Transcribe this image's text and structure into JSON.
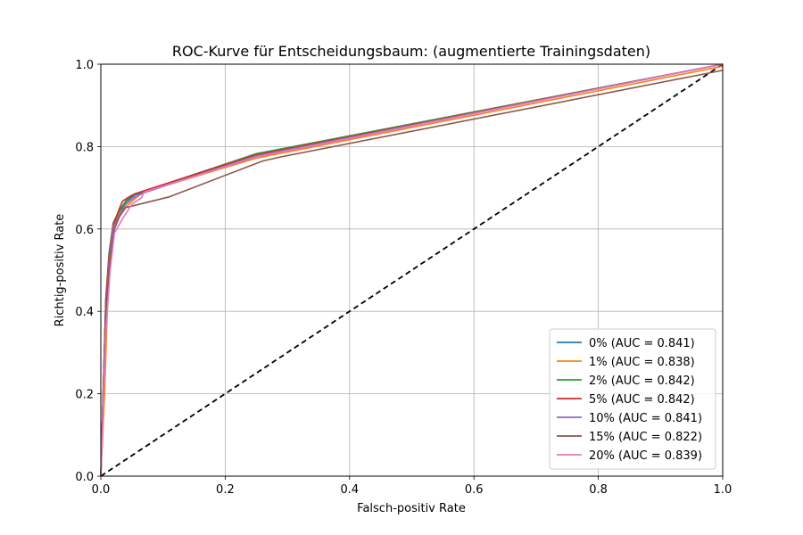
{
  "chart_data": {
    "type": "line",
    "title": "ROC-Kurve für Entscheidungsbaum: (augmentierte Trainingsdaten)",
    "xlabel": "Falsch-positiv Rate",
    "ylabel": "Richtig-positiv Rate",
    "xlim": [
      0,
      1
    ],
    "ylim": [
      0,
      1
    ],
    "grid": true,
    "legend_position": "lower-right",
    "xticks": [
      "0.0",
      "0.2",
      "0.4",
      "0.6",
      "0.8",
      "1.0"
    ],
    "yticks": [
      "0.0",
      "0.2",
      "0.4",
      "0.6",
      "0.8",
      "1.0"
    ],
    "reference_line": {
      "x": [
        0,
        1
      ],
      "y": [
        0,
        1
      ],
      "style": "dashed",
      "color": "#000000"
    },
    "series": [
      {
        "name": "0%",
        "label": "0% (AUC = 0.841)",
        "color": "#1f77b4",
        "x": [
          0,
          0.008,
          0.013,
          0.02,
          0.03,
          0.04,
          0.055,
          0.07,
          0.25,
          1.0
        ],
        "y": [
          0,
          0.42,
          0.53,
          0.61,
          0.64,
          0.665,
          0.683,
          0.69,
          0.782,
          1.0
        ]
      },
      {
        "name": "1%",
        "label": "1% (AUC = 0.838)",
        "color": "#ff7f0e",
        "x": [
          0,
          0.006,
          0.012,
          0.02,
          0.03,
          0.045,
          0.06,
          0.07,
          0.25,
          1.0
        ],
        "y": [
          0,
          0.2,
          0.48,
          0.6,
          0.64,
          0.66,
          0.68,
          0.69,
          0.772,
          0.995
        ]
      },
      {
        "name": "2%",
        "label": "2% (AUC = 0.842)",
        "color": "#2ca02c",
        "x": [
          0,
          0.008,
          0.013,
          0.02,
          0.03,
          0.04,
          0.055,
          0.07,
          0.25,
          1.0
        ],
        "y": [
          0,
          0.43,
          0.54,
          0.615,
          0.645,
          0.668,
          0.686,
          0.692,
          0.783,
          1.0
        ]
      },
      {
        "name": "5%",
        "label": "5% (AUC = 0.842)",
        "color": "#d62728",
        "x": [
          0,
          0.008,
          0.013,
          0.02,
          0.03,
          0.035,
          0.05,
          0.07,
          0.25,
          1.0
        ],
        "y": [
          0,
          0.43,
          0.53,
          0.61,
          0.65,
          0.668,
          0.682,
          0.693,
          0.78,
          1.0
        ]
      },
      {
        "name": "10%",
        "label": "10% (AUC = 0.841)",
        "color": "#9467bd",
        "x": [
          0,
          0.008,
          0.013,
          0.02,
          0.03,
          0.04,
          0.055,
          0.07,
          0.25,
          1.0
        ],
        "y": [
          0,
          0.41,
          0.52,
          0.605,
          0.635,
          0.66,
          0.678,
          0.688,
          0.778,
          1.0
        ]
      },
      {
        "name": "15%",
        "label": "15% (AUC = 0.822)",
        "color": "#8c564b",
        "x": [
          0,
          0.008,
          0.014,
          0.022,
          0.03,
          0.04,
          0.11,
          0.26,
          0.29,
          1.0
        ],
        "y": [
          0,
          0.4,
          0.52,
          0.6,
          0.63,
          0.652,
          0.678,
          0.765,
          0.775,
          0.985
        ]
      },
      {
        "name": "20%",
        "label": "20% (AUC = 0.839)",
        "color": "#e377c2",
        "x": [
          0,
          0.008,
          0.015,
          0.022,
          0.035,
          0.05,
          0.065,
          0.07,
          0.25,
          1.0
        ],
        "y": [
          0,
          0.35,
          0.5,
          0.59,
          0.625,
          0.66,
          0.675,
          0.69,
          0.775,
          1.0
        ]
      }
    ]
  }
}
